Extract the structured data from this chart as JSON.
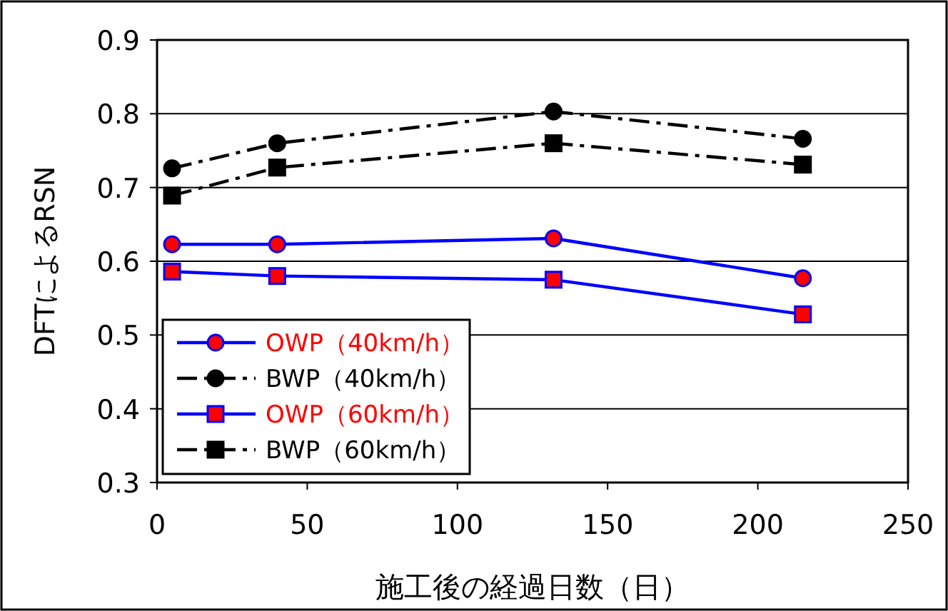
{
  "chart_data": {
    "type": "line",
    "xlabel": "施工後の経過日数（日）",
    "ylabel": "DFTによるRSN",
    "xlim": [
      0,
      250
    ],
    "xticks": [
      0,
      50,
      100,
      150,
      200,
      250
    ],
    "ylim": [
      0.3,
      0.9
    ],
    "yticks": [
      0.3,
      0.4,
      0.5,
      0.6,
      0.7,
      0.8,
      0.9
    ],
    "grid": "y",
    "legend": "bottom left",
    "x": [
      5,
      40,
      132,
      215
    ],
    "series": [
      {
        "name": "OWP（40km/h）",
        "color": "#0000ff",
        "colors": [
          "#ff0000",
          "#ff0000",
          "#ff0000",
          "#ff0000"
        ],
        "marker": "circle",
        "line_style": "solid",
        "values": [
          0.623,
          0.623,
          0.631,
          0.577
        ]
      },
      {
        "name": "BWP（40km/h）",
        "color": "#000000",
        "marker": "circle",
        "line_style": "dashed",
        "values": [
          0.726,
          0.76,
          0.803,
          0.766
        ]
      },
      {
        "name": "OWP（60km/h）",
        "color": "#0000ff",
        "colors": [
          "#ff0000",
          "#ff0000",
          "#ff0000",
          "#ff0000"
        ],
        "marker": "square",
        "line_style": "solid",
        "values": [
          0.586,
          0.58,
          0.575,
          0.528
        ]
      },
      {
        "name": "BWP（60km/h）",
        "color": "#000000",
        "marker": "square",
        "line_style": "dashed",
        "values": [
          0.689,
          0.727,
          0.76,
          0.731
        ]
      }
    ]
  }
}
